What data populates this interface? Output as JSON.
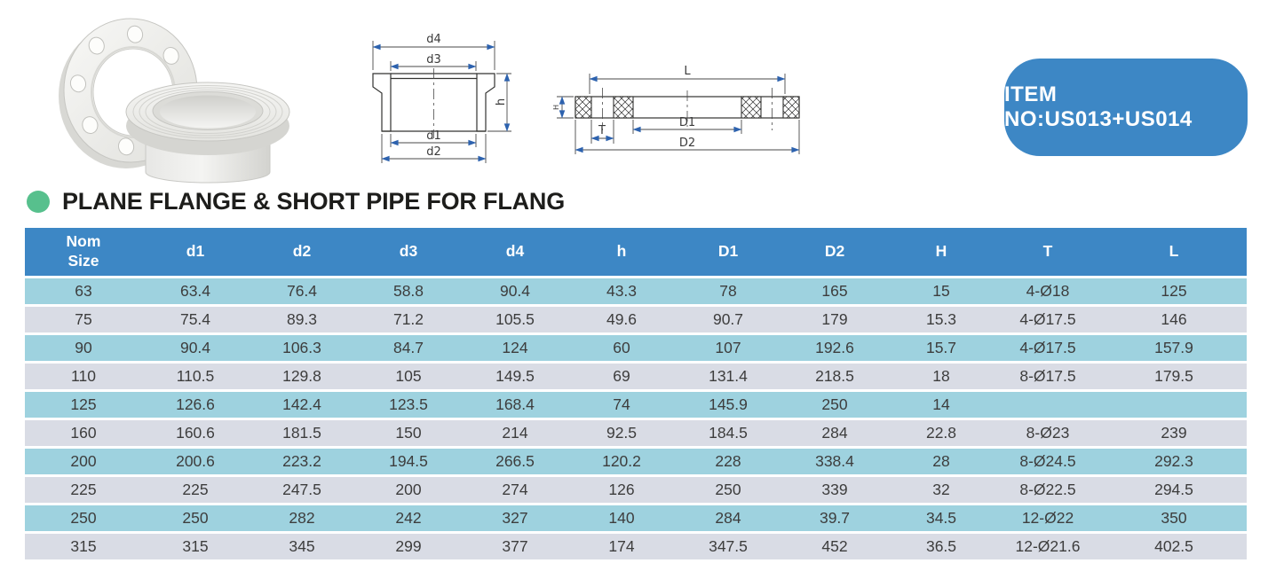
{
  "badge": {
    "label": "ITEM NO:US013+US014",
    "bg_color": "#3d87c5"
  },
  "section_title": "PLANE FLANGE & SHORT PIPE FOR FLANG",
  "drawings": {
    "stub_section": {
      "d4": "d4",
      "d3": "d3",
      "d1": "d1",
      "d2": "d2",
      "h": "h"
    },
    "flange_section": {
      "L": "L",
      "D1": "D1",
      "D2": "D2",
      "T": "T",
      "H": "H"
    }
  },
  "colors": {
    "header_blue": "#3d87c5",
    "row_cyan": "#9ed2df",
    "row_gray": "#d9dce5",
    "bullet_green": "#57c08d",
    "dimension_blue": "#2d62ae"
  },
  "table": {
    "header_nom": {
      "line1": "Nom",
      "line2": "Size"
    },
    "headers": [
      "d1",
      "d2",
      "d3",
      "d4",
      "h",
      "D1",
      "D2",
      "H",
      "T",
      "L"
    ],
    "rows": [
      [
        "63",
        "63.4",
        "76.4",
        "58.8",
        "90.4",
        "43.3",
        "78",
        "165",
        "15",
        "4-Ø18",
        "125"
      ],
      [
        "75",
        "75.4",
        "89.3",
        "71.2",
        "105.5",
        "49.6",
        "90.7",
        "179",
        "15.3",
        "4-Ø17.5",
        "146"
      ],
      [
        "90",
        "90.4",
        "106.3",
        "84.7",
        "124",
        "60",
        "107",
        "192.6",
        "15.7",
        "4-Ø17.5",
        "157.9"
      ],
      [
        "110",
        "110.5",
        "129.8",
        "105",
        "149.5",
        "69",
        "131.4",
        "218.5",
        "18",
        "8-Ø17.5",
        "179.5"
      ],
      [
        "125",
        "126.6",
        "142.4",
        "123.5",
        "168.4",
        "74",
        "145.9",
        "250",
        "14",
        "",
        ""
      ],
      [
        "160",
        "160.6",
        "181.5",
        "150",
        "214",
        "92.5",
        "184.5",
        "284",
        "22.8",
        "8-Ø23",
        "239"
      ],
      [
        "200",
        "200.6",
        "223.2",
        "194.5",
        "266.5",
        "120.2",
        "228",
        "338.4",
        "28",
        "8-Ø24.5",
        "292.3"
      ],
      [
        "225",
        "225",
        "247.5",
        "200",
        "274",
        "126",
        "250",
        "339",
        "32",
        "8-Ø22.5",
        "294.5"
      ],
      [
        "250",
        "250",
        "282",
        "242",
        "327",
        "140",
        "284",
        "39.7",
        "34.5",
        "12-Ø22",
        "350"
      ],
      [
        "315",
        "315",
        "345",
        "299",
        "377",
        "174",
        "347.5",
        "452",
        "36.5",
        "12-Ø21.6",
        "402.5"
      ]
    ]
  }
}
